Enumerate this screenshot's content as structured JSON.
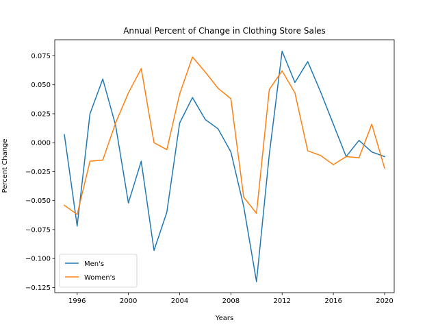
{
  "chart_data": {
    "type": "line",
    "title": "Annual Percent of Change in Clothing Store Sales",
    "xlabel": "Years",
    "ylabel": "Percent Change",
    "xlim": [
      1994.25,
      2020.75
    ],
    "ylim": [
      -0.1295,
      0.0889
    ],
    "xticks": [
      1996,
      2000,
      2004,
      2008,
      2012,
      2016,
      2020
    ],
    "xtick_labels": [
      "1996",
      "2000",
      "2004",
      "2008",
      "2012",
      "2016",
      "2020"
    ],
    "yticks": [
      -0.125,
      -0.1,
      -0.075,
      -0.05,
      -0.025,
      0.0,
      0.025,
      0.05,
      0.075
    ],
    "ytick_labels": [
      "−0.125",
      "−0.100",
      "−0.075",
      "−0.050",
      "−0.025",
      "0.000",
      "0.025",
      "0.050",
      "0.075"
    ],
    "grid": false,
    "legend_position": "lower-left",
    "x": [
      1995,
      1996,
      1997,
      1998,
      1999,
      2000,
      2001,
      2002,
      2003,
      2004,
      2005,
      2006,
      2007,
      2008,
      2009,
      2010,
      2011,
      2012,
      2013,
      2014,
      2015,
      2016,
      2017,
      2018,
      2019,
      2020
    ],
    "series": [
      {
        "name": "Men's",
        "color": "#1f77b4",
        "values": [
          0.007,
          -0.072,
          0.025,
          0.055,
          0.015,
          -0.052,
          -0.016,
          -0.093,
          -0.06,
          0.017,
          0.039,
          0.02,
          0.012,
          -0.008,
          -0.055,
          -0.12,
          -0.01,
          0.079,
          0.052,
          0.07,
          0.044,
          0.016,
          -0.012,
          0.002,
          -0.008,
          -0.012
        ]
      },
      {
        "name": "Women's",
        "color": "#ff7f0e",
        "values": [
          -0.054,
          -0.062,
          -0.016,
          -0.015,
          0.017,
          0.043,
          0.064,
          0.0,
          -0.006,
          0.042,
          0.074,
          0.061,
          0.047,
          0.038,
          -0.047,
          -0.061,
          0.046,
          0.062,
          0.043,
          -0.007,
          -0.011,
          -0.019,
          -0.012,
          -0.013,
          0.016,
          -0.022
        ]
      }
    ]
  }
}
